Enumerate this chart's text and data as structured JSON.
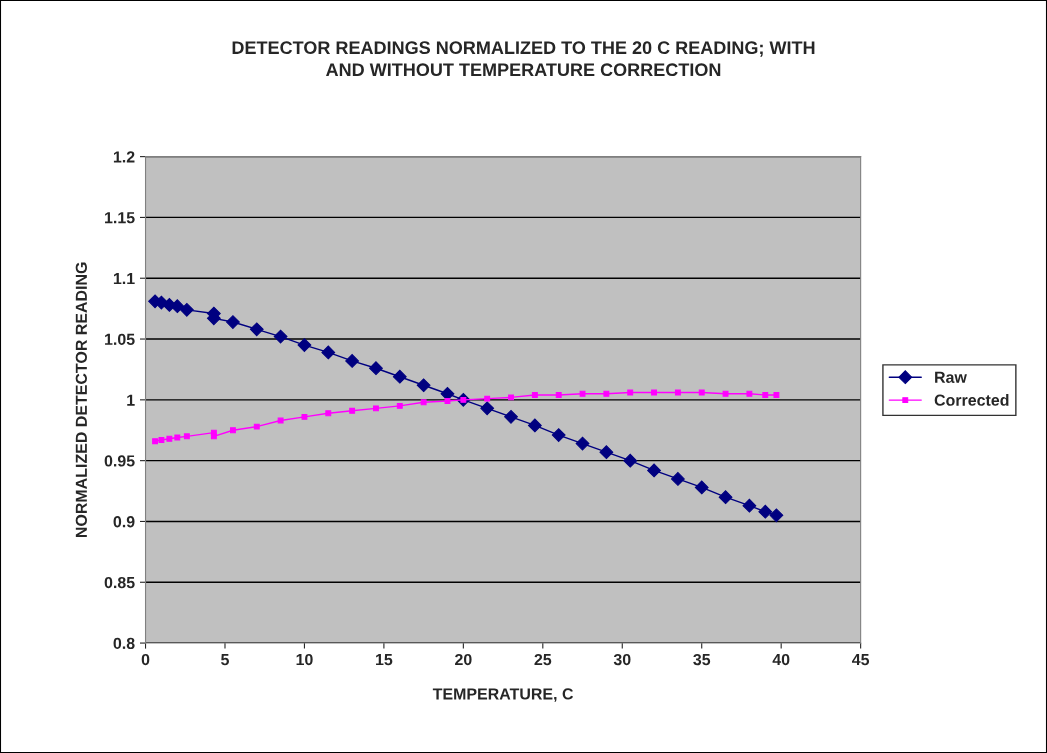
{
  "chart_data": {
    "type": "line",
    "title": "DETECTOR READINGS NORMALIZED TO THE 20 C READING; WITH\nAND WITHOUT TEMPERATURE CORRECTION",
    "xlabel": "TEMPERATURE, C",
    "ylabel": "NORMALIZED DETECTOR READING",
    "x": [
      0.6,
      1.0,
      1.5,
      2.0,
      2.6,
      4.3,
      4.3,
      5.5,
      7,
      8.5,
      10,
      11.5,
      13,
      14.5,
      16,
      17.5,
      19,
      20,
      21.5,
      23,
      24.5,
      26,
      27.5,
      29,
      30.5,
      32,
      33.5,
      35,
      36.5,
      38,
      39,
      39.7
    ],
    "series": [
      {
        "name": "Raw",
        "color": "#000080",
        "marker": "diamond",
        "values": [
          1.081,
          1.08,
          1.078,
          1.077,
          1.074,
          1.071,
          1.067,
          1.064,
          1.058,
          1.052,
          1.045,
          1.039,
          1.032,
          1.026,
          1.019,
          1.012,
          1.005,
          1.0,
          0.993,
          0.986,
          0.979,
          0.971,
          0.964,
          0.957,
          0.95,
          0.942,
          0.935,
          0.928,
          0.92,
          0.913,
          0.908,
          0.905
        ]
      },
      {
        "name": "Corrected",
        "color": "#ff00ff",
        "marker": "square",
        "values": [
          0.966,
          0.967,
          0.968,
          0.969,
          0.97,
          0.973,
          0.97,
          0.975,
          0.978,
          0.983,
          0.986,
          0.989,
          0.991,
          0.993,
          0.995,
          0.998,
          0.999,
          1.0,
          1.001,
          1.002,
          1.004,
          1.004,
          1.005,
          1.005,
          1.006,
          1.006,
          1.006,
          1.006,
          1.005,
          1.005,
          1.004,
          1.004
        ]
      }
    ],
    "xlim": [
      0,
      45
    ],
    "xticks": [
      0,
      5,
      10,
      15,
      20,
      25,
      30,
      35,
      40,
      45
    ],
    "ylim": [
      0.8,
      1.2
    ],
    "yticks": [
      0.8,
      0.85,
      0.9,
      0.95,
      1,
      1.05,
      1.1,
      1.15,
      1.2
    ],
    "grid": "y",
    "legend": "right"
  }
}
